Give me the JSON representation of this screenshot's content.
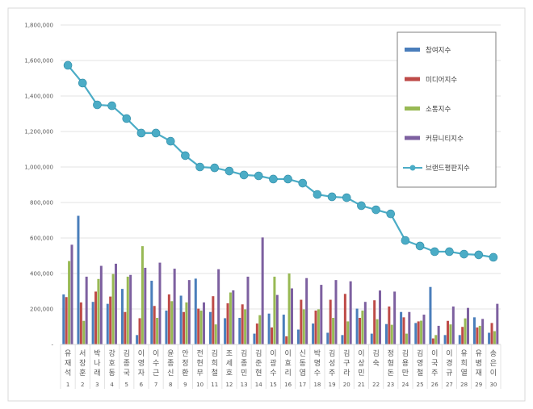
{
  "chart_data": {
    "type": "bar",
    "title": "",
    "xlabel": "",
    "ylabel": "",
    "ylim": [
      0,
      1800000
    ],
    "yticks": [
      "-",
      "200,000",
      "400,000",
      "600,000",
      "800,000",
      "1,000,000",
      "1,200,000",
      "1,400,000",
      "1,600,000",
      "1,800,000"
    ],
    "grid": true,
    "legend_position": "top-right",
    "categories": [
      "유재석",
      "서장훈",
      "박나래",
      "강호동",
      "김종국",
      "이영자",
      "이수근",
      "윤종신",
      "안정환",
      "전현무",
      "김희철",
      "조세호",
      "김종민",
      "김준현",
      "이광수",
      "이효리",
      "신동엽",
      "박명수",
      "김성주",
      "김구라",
      "이상민",
      "김숙",
      "정형돈",
      "김용만",
      "김영철",
      "이국주",
      "이경규",
      "유희열",
      "유병재",
      "송은이"
    ],
    "ranks": [
      "1",
      "2",
      "3",
      "4",
      "5",
      "6",
      "7",
      "8",
      "9",
      "10",
      "11",
      "12",
      "13",
      "14",
      "15",
      "16",
      "17",
      "18",
      "19",
      "20",
      "21",
      "22",
      "23",
      "24",
      "25",
      "26",
      "27",
      "28",
      "29",
      "30"
    ],
    "series": [
      {
        "name": "참여지수",
        "type": "bar",
        "color": "#4a7ebb",
        "values": [
          282000,
          725000,
          240000,
          229000,
          313000,
          53000,
          359000,
          191000,
          275000,
          371000,
          183000,
          148000,
          150000,
          61000,
          174000,
          168000,
          84000,
          118000,
          66000,
          53000,
          202000,
          61000,
          115000,
          183000,
          121000,
          324000,
          53000,
          53000,
          153000,
          66000
        ]
      },
      {
        "name": "미디어지수",
        "type": "bar",
        "color": "#be4b48",
        "values": [
          267000,
          237000,
          298000,
          270000,
          183000,
          148000,
          217000,
          282000,
          183000,
          202000,
          272000,
          232000,
          226000,
          118000,
          96000,
          46000,
          252000,
          191000,
          252000,
          285000,
          150000,
          249000,
          214000,
          153000,
          130000,
          34000,
          133000,
          99000,
          96000,
          121000
        ]
      },
      {
        "name": "소통지수",
        "type": "bar",
        "color": "#98b954",
        "values": [
          470000,
          133000,
          369000,
          397000,
          382000,
          554000,
          150000,
          244000,
          237000,
          191000,
          113000,
          293000,
          198000,
          165000,
          382000,
          400000,
          198000,
          198000,
          150000,
          130000,
          191000,
          142000,
          111000,
          61000,
          134000,
          53000,
          113000,
          147000,
          105000,
          75000
        ]
      },
      {
        "name": "커뮤니티지수",
        "type": "bar",
        "color": "#7d60a0",
        "values": [
          562000,
          382000,
          443000,
          455000,
          392000,
          432000,
          461000,
          427000,
          363000,
          237000,
          424000,
          305000,
          382000,
          603000,
          279000,
          316000,
          374000,
          336000,
          363000,
          356000,
          240000,
          304000,
          298000,
          183000,
          168000,
          105000,
          214000,
          206000,
          144000,
          229000
        ]
      },
      {
        "name": "브랜드평판지수",
        "type": "line",
        "color": "#4bacc6",
        "values": [
          1573000,
          1473000,
          1350000,
          1345000,
          1273000,
          1191000,
          1191000,
          1145000,
          1064000,
          1000000,
          995000,
          977000,
          955000,
          950000,
          932000,
          932000,
          909000,
          845000,
          832000,
          827000,
          782000,
          759000,
          736000,
          586000,
          555000,
          523000,
          523000,
          509000,
          505000,
          491000
        ]
      }
    ]
  }
}
